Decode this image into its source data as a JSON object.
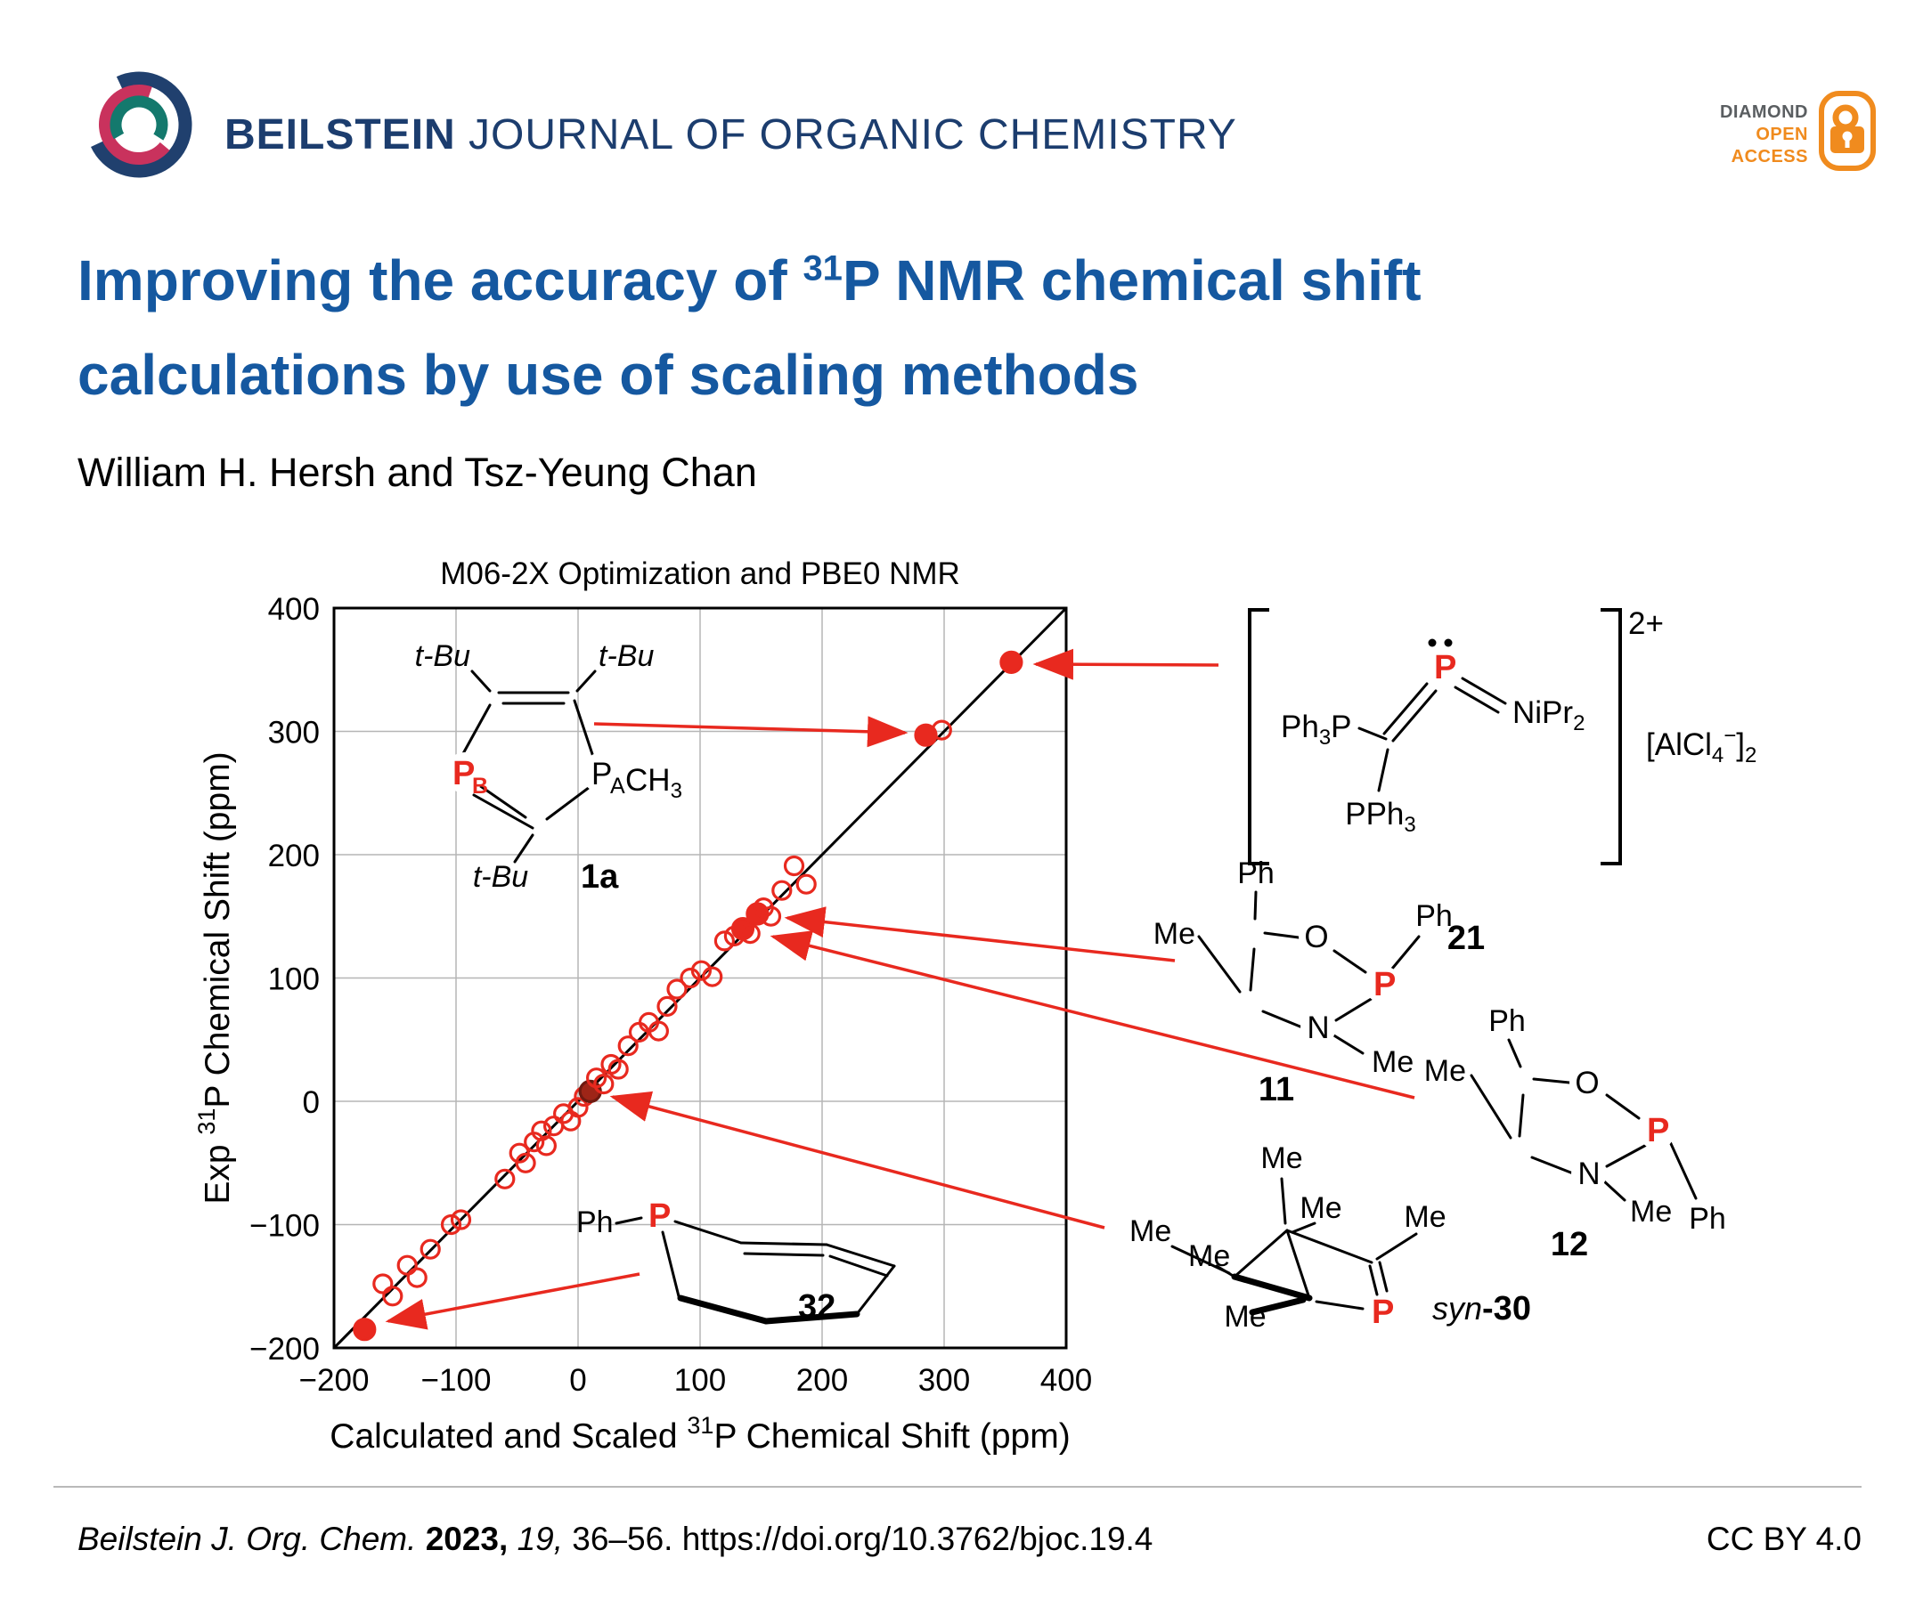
{
  "header": {
    "journal_bold": "BEILSTEIN",
    "journal_rest": " JOURNAL OF ORGANIC CHEMISTRY",
    "open_access": {
      "line1": "DIAMOND",
      "line2": "OPEN",
      "line3": "ACCESS"
    }
  },
  "title": {
    "line1_pre": "Improving the accuracy of ",
    "line1_sup": "31",
    "line1_post": "P NMR chemical shift",
    "line2": "calculations by use of scaling methods"
  },
  "authors": "William H. Hersh and Tsz-Yeung Chan",
  "chart_data": {
    "type": "scatter",
    "title": "M06-2X Optimization and PBE0 NMR",
    "xlabel": [
      {
        "t": "Calculated and Scaled "
      },
      {
        "t": "31",
        "sup": true
      },
      {
        "t": "P Chemical Shift (ppm)"
      }
    ],
    "ylabel": [
      {
        "t": "Exp "
      },
      {
        "t": "31",
        "sup": true
      },
      {
        "t": "P Chemical Shift (ppm)"
      }
    ],
    "xlim": [
      -200,
      400
    ],
    "ylim": [
      -200,
      400
    ],
    "xticks": [
      -200,
      -100,
      0,
      100,
      200,
      300,
      400
    ],
    "yticks": [
      -200,
      -100,
      0,
      100,
      200,
      300,
      400
    ],
    "grid": true,
    "identity_line": true,
    "legend": "none",
    "point_color": "#e8291f",
    "points": [
      {
        "x": -175,
        "y": -185,
        "f": 1
      },
      {
        "x": -160,
        "y": -148
      },
      {
        "x": -152,
        "y": -158
      },
      {
        "x": -140,
        "y": -133
      },
      {
        "x": -132,
        "y": -143
      },
      {
        "x": -121,
        "y": -120
      },
      {
        "x": -104,
        "y": -100
      },
      {
        "x": -96,
        "y": -96
      },
      {
        "x": -60,
        "y": -63
      },
      {
        "x": -48,
        "y": -42
      },
      {
        "x": -43,
        "y": -50
      },
      {
        "x": -36,
        "y": -33
      },
      {
        "x": -30,
        "y": -24
      },
      {
        "x": -26,
        "y": -36
      },
      {
        "x": -20,
        "y": -20
      },
      {
        "x": -12,
        "y": -10
      },
      {
        "x": -6,
        "y": -16
      },
      {
        "x": 0,
        "y": -5
      },
      {
        "x": 5,
        "y": 4
      },
      {
        "x": 10,
        "y": 8,
        "f": 1,
        "d": 1
      },
      {
        "x": 15,
        "y": 19
      },
      {
        "x": 21,
        "y": 14
      },
      {
        "x": 27,
        "y": 30
      },
      {
        "x": 33,
        "y": 26
      },
      {
        "x": 41,
        "y": 45
      },
      {
        "x": 50,
        "y": 56
      },
      {
        "x": 58,
        "y": 64
      },
      {
        "x": 66,
        "y": 57
      },
      {
        "x": 73,
        "y": 77
      },
      {
        "x": 81,
        "y": 91
      },
      {
        "x": 92,
        "y": 100
      },
      {
        "x": 101,
        "y": 106
      },
      {
        "x": 110,
        "y": 101
      },
      {
        "x": 120,
        "y": 130
      },
      {
        "x": 128,
        "y": 134
      },
      {
        "x": 135,
        "y": 140,
        "f": 1
      },
      {
        "x": 141,
        "y": 136
      },
      {
        "x": 147,
        "y": 152,
        "f": 1
      },
      {
        "x": 152,
        "y": 157
      },
      {
        "x": 158,
        "y": 150
      },
      {
        "x": 167,
        "y": 171
      },
      {
        "x": 177,
        "y": 191
      },
      {
        "x": 187,
        "y": 176
      },
      {
        "x": 285,
        "y": 297,
        "f": 1
      },
      {
        "x": 298,
        "y": 301
      },
      {
        "x": 355,
        "y": 356,
        "f": 1
      }
    ]
  },
  "structures": {
    "s1a": {
      "tbu_tl": "t-Bu",
      "tbu_tr": "t-Bu",
      "tbu_b": "t-Bu",
      "p_b": "P",
      "p_b_sub": "B",
      "p_a": "P",
      "p_a_sub": "A",
      "ch3_a": "CH",
      "ch3_b": "3",
      "id": "1a"
    },
    "s21": {
      "ph3p_a": "Ph",
      "ph3p_b": "3",
      "ph3p_c": "P",
      "p": "P",
      "nipr_a": "NiPr",
      "nipr_b": "2",
      "pph3_a": "PPh",
      "pph3_b": "3",
      "charge": "2+",
      "ai_a": "[AlCl",
      "ai_b": "4",
      "ai_c": "−",
      "ai_d": "]",
      "ai_e": "2",
      "id": "21"
    },
    "s11": {
      "me_left": "Me",
      "ph_top": "Ph",
      "ph_right": "Ph",
      "o": "O",
      "p": "P",
      "n": "N",
      "n_me": "Me",
      "id": "11"
    },
    "s12": {
      "ph_top": "Ph",
      "me_left": "Me",
      "o": "O",
      "p": "P",
      "n": "N",
      "n_me": "Me",
      "p_ph": "Ph",
      "id": "12"
    },
    "s30": {
      "me_top1": "Me",
      "me_top2": "Me",
      "me_left1": "Me",
      "me_left2": "Me",
      "me_bottom": "Me",
      "me_right": "Me",
      "p": "P",
      "id_pre": "syn",
      "id_post": "-30"
    },
    "s32": {
      "ph": "Ph",
      "p": "P",
      "id": "32"
    }
  },
  "footer": {
    "journal": "Beilstein J. Org. Chem.",
    "year": "2023,",
    "volume": "19,",
    "pages_doi": "36–56. https://doi.org/10.3762/bjoc.19.4",
    "license": "CC BY 4.0"
  },
  "colors": {
    "title_blue": "#1558a0",
    "journal_navy": "#1c3d6e",
    "accent_red": "#e8291f",
    "open_access_orange": "#f08b1e"
  }
}
